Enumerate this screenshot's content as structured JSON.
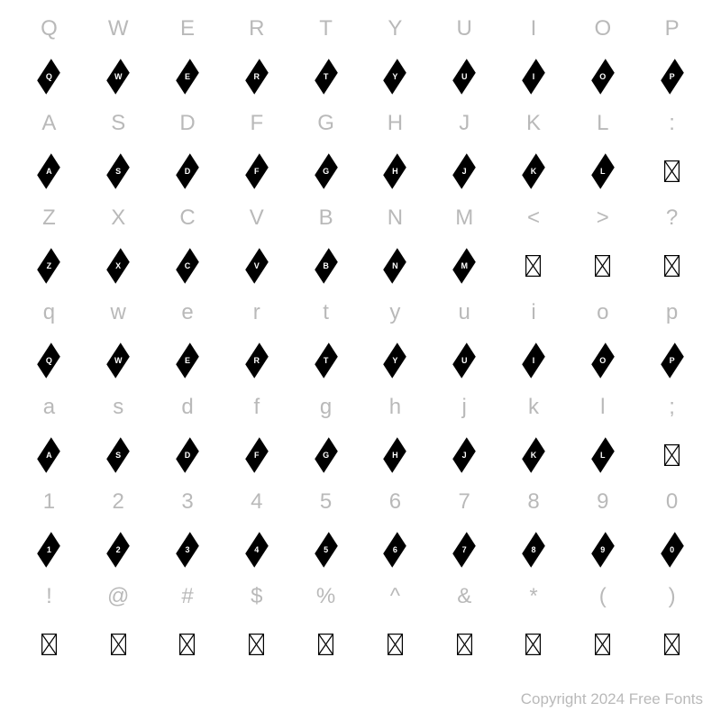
{
  "cols": 10,
  "colors": {
    "background": "#ffffff",
    "label": "#b9b9b9",
    "glyph_fill": "#000000",
    "glyph_text": "#ffffff",
    "notdef_stroke": "#000000",
    "copyright": "#b9b9b9"
  },
  "fontsizes": {
    "label": 24,
    "glyph_letter": 9,
    "copyright": 17
  },
  "rows": [
    {
      "labels": [
        "Q",
        "W",
        "E",
        "R",
        "T",
        "Y",
        "U",
        "I",
        "O",
        "P"
      ],
      "glyphs": [
        {
          "type": "diamond",
          "letter": "Q"
        },
        {
          "type": "diamond",
          "letter": "W"
        },
        {
          "type": "diamond",
          "letter": "E"
        },
        {
          "type": "diamond",
          "letter": "R"
        },
        {
          "type": "diamond",
          "letter": "T"
        },
        {
          "type": "diamond",
          "letter": "Y"
        },
        {
          "type": "diamond",
          "letter": "U"
        },
        {
          "type": "diamond",
          "letter": "I"
        },
        {
          "type": "diamond",
          "letter": "O"
        },
        {
          "type": "diamond",
          "letter": "P"
        }
      ]
    },
    {
      "labels": [
        "A",
        "S",
        "D",
        "F",
        "G",
        "H",
        "J",
        "K",
        "L",
        ":"
      ],
      "glyphs": [
        {
          "type": "diamond",
          "letter": "A"
        },
        {
          "type": "diamond",
          "letter": "S"
        },
        {
          "type": "diamond",
          "letter": "D"
        },
        {
          "type": "diamond",
          "letter": "F"
        },
        {
          "type": "diamond",
          "letter": "G"
        },
        {
          "type": "diamond",
          "letter": "H"
        },
        {
          "type": "diamond",
          "letter": "J"
        },
        {
          "type": "diamond",
          "letter": "K"
        },
        {
          "type": "diamond",
          "letter": "L"
        },
        {
          "type": "notdef"
        }
      ]
    },
    {
      "labels": [
        "Z",
        "X",
        "C",
        "V",
        "B",
        "N",
        "M",
        "<",
        ">",
        "?"
      ],
      "glyphs": [
        {
          "type": "diamond",
          "letter": "Z"
        },
        {
          "type": "diamond",
          "letter": "X"
        },
        {
          "type": "diamond",
          "letter": "C"
        },
        {
          "type": "diamond",
          "letter": "V"
        },
        {
          "type": "diamond",
          "letter": "B"
        },
        {
          "type": "diamond",
          "letter": "N"
        },
        {
          "type": "diamond",
          "letter": "M"
        },
        {
          "type": "notdef"
        },
        {
          "type": "notdef"
        },
        {
          "type": "notdef"
        }
      ]
    },
    {
      "labels": [
        "q",
        "w",
        "e",
        "r",
        "t",
        "y",
        "u",
        "i",
        "o",
        "p"
      ],
      "glyphs": [
        {
          "type": "diamond",
          "letter": "Q"
        },
        {
          "type": "diamond",
          "letter": "W"
        },
        {
          "type": "diamond",
          "letter": "E"
        },
        {
          "type": "diamond",
          "letter": "R"
        },
        {
          "type": "diamond",
          "letter": "T"
        },
        {
          "type": "diamond",
          "letter": "Y"
        },
        {
          "type": "diamond",
          "letter": "U"
        },
        {
          "type": "diamond",
          "letter": "I"
        },
        {
          "type": "diamond",
          "letter": "O"
        },
        {
          "type": "diamond",
          "letter": "P"
        }
      ]
    },
    {
      "labels": [
        "a",
        "s",
        "d",
        "f",
        "g",
        "h",
        "j",
        "k",
        "l",
        ";"
      ],
      "glyphs": [
        {
          "type": "diamond",
          "letter": "A"
        },
        {
          "type": "diamond",
          "letter": "S"
        },
        {
          "type": "diamond",
          "letter": "D"
        },
        {
          "type": "diamond",
          "letter": "F"
        },
        {
          "type": "diamond",
          "letter": "G"
        },
        {
          "type": "diamond",
          "letter": "H"
        },
        {
          "type": "diamond",
          "letter": "J"
        },
        {
          "type": "diamond",
          "letter": "K"
        },
        {
          "type": "diamond",
          "letter": "L"
        },
        {
          "type": "notdef"
        }
      ]
    },
    {
      "labels": [
        "1",
        "2",
        "3",
        "4",
        "5",
        "6",
        "7",
        "8",
        "9",
        "0"
      ],
      "glyphs": [
        {
          "type": "diamond",
          "letter": "1"
        },
        {
          "type": "diamond",
          "letter": "2"
        },
        {
          "type": "diamond",
          "letter": "3"
        },
        {
          "type": "diamond",
          "letter": "4"
        },
        {
          "type": "diamond",
          "letter": "5"
        },
        {
          "type": "diamond",
          "letter": "6"
        },
        {
          "type": "diamond",
          "letter": "7"
        },
        {
          "type": "diamond",
          "letter": "8"
        },
        {
          "type": "diamond",
          "letter": "9"
        },
        {
          "type": "diamond",
          "letter": "0"
        }
      ]
    },
    {
      "labels": [
        "!",
        "@",
        "#",
        "$",
        "%",
        "^",
        "&",
        "*",
        "(",
        ")"
      ],
      "glyphs": [
        {
          "type": "notdef"
        },
        {
          "type": "notdef"
        },
        {
          "type": "notdef"
        },
        {
          "type": "notdef"
        },
        {
          "type": "notdef"
        },
        {
          "type": "notdef"
        },
        {
          "type": "notdef"
        },
        {
          "type": "notdef"
        },
        {
          "type": "notdef"
        },
        {
          "type": "notdef"
        }
      ]
    }
  ],
  "copyright": "Copyright 2024 Free Fonts"
}
